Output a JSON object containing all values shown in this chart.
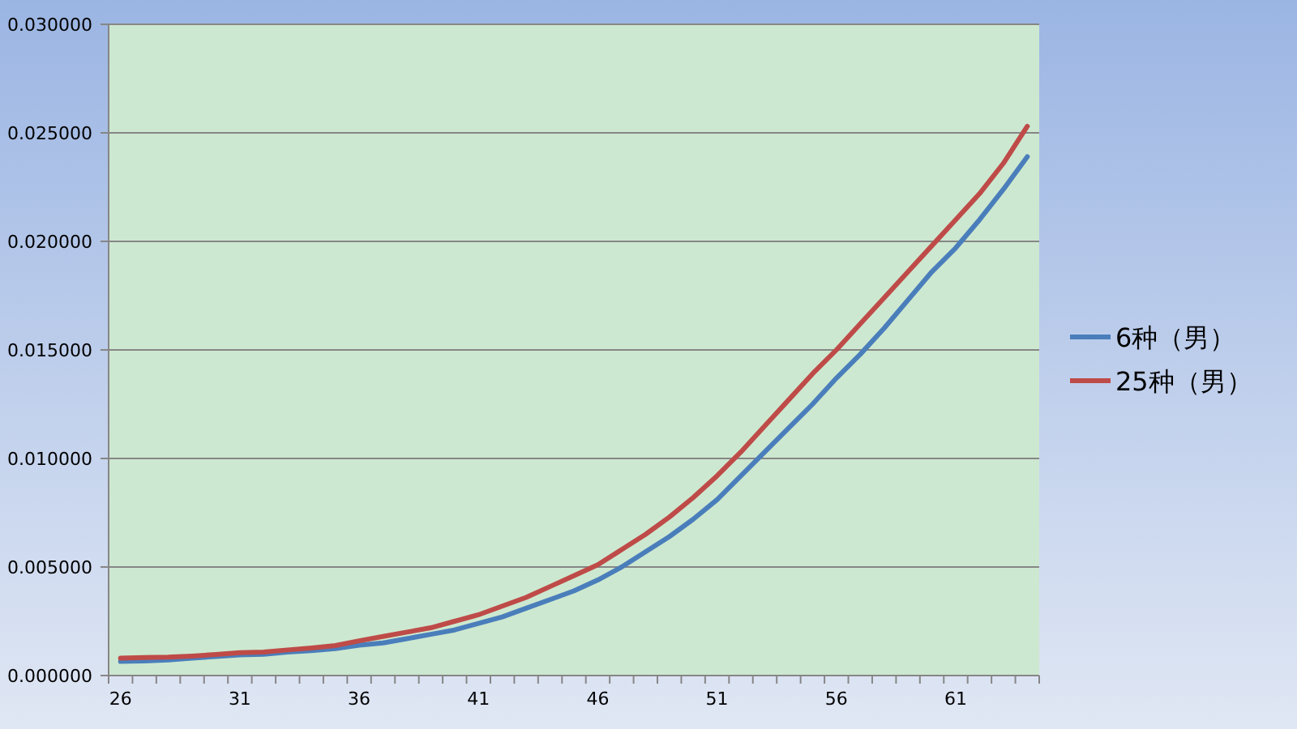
{
  "chart_data": {
    "type": "line",
    "categories": [
      "26",
      null,
      null,
      null,
      null,
      "31",
      null,
      null,
      null,
      null,
      "36",
      null,
      null,
      null,
      null,
      "41",
      null,
      null,
      null,
      null,
      "46",
      null,
      null,
      null,
      null,
      "51",
      null,
      null,
      null,
      null,
      "56",
      null,
      null,
      null,
      null,
      "61",
      null,
      null,
      null
    ],
    "series": [
      {
        "name": "6种（男）",
        "color": "#4a7ebb",
        "values": [
          0.00065,
          0.00067,
          0.00072,
          0.0008,
          0.00088,
          0.00095,
          0.00098,
          0.00108,
          0.00115,
          0.00124,
          0.0014,
          0.0015,
          0.0017,
          0.0019,
          0.0021,
          0.0024,
          0.0027,
          0.0031,
          0.0035,
          0.0039,
          0.0044,
          0.005,
          0.0057,
          0.0064,
          0.0072,
          0.0081,
          0.0092,
          0.0103,
          0.0114,
          0.0125,
          0.0137,
          0.0148,
          0.016,
          0.0173,
          0.0186,
          0.0197,
          0.021,
          0.0224,
          0.0239
        ]
      },
      {
        "name": "25种（男）",
        "color": "#be4b48",
        "values": [
          0.0008,
          0.00083,
          0.00085,
          0.0009,
          0.00097,
          0.00105,
          0.00108,
          0.00118,
          0.00127,
          0.00138,
          0.0016,
          0.0018,
          0.002,
          0.0022,
          0.0025,
          0.0028,
          0.0032,
          0.0036,
          0.0041,
          0.0046,
          0.0051,
          0.0058,
          0.0065,
          0.0073,
          0.0082,
          0.0092,
          0.0103,
          0.0115,
          0.0127,
          0.0139,
          0.015,
          0.0162,
          0.0174,
          0.0186,
          0.0198,
          0.021,
          0.0222,
          0.0236,
          0.0253
        ]
      }
    ],
    "ylim": [
      0,
      0.03
    ],
    "yticks": [
      {
        "value": 0,
        "label": "0.000000"
      },
      {
        "value": 0.005,
        "label": "0.005000"
      },
      {
        "value": 0.01,
        "label": "0.010000"
      },
      {
        "value": 0.015,
        "label": "0.015000"
      },
      {
        "value": 0.02,
        "label": "0.020000"
      },
      {
        "value": 0.025,
        "label": "0.025000"
      },
      {
        "value": 0.03,
        "label": "0.030000"
      }
    ],
    "grid": "y",
    "legend": "right",
    "marker": "none",
    "line_style": "solid"
  }
}
